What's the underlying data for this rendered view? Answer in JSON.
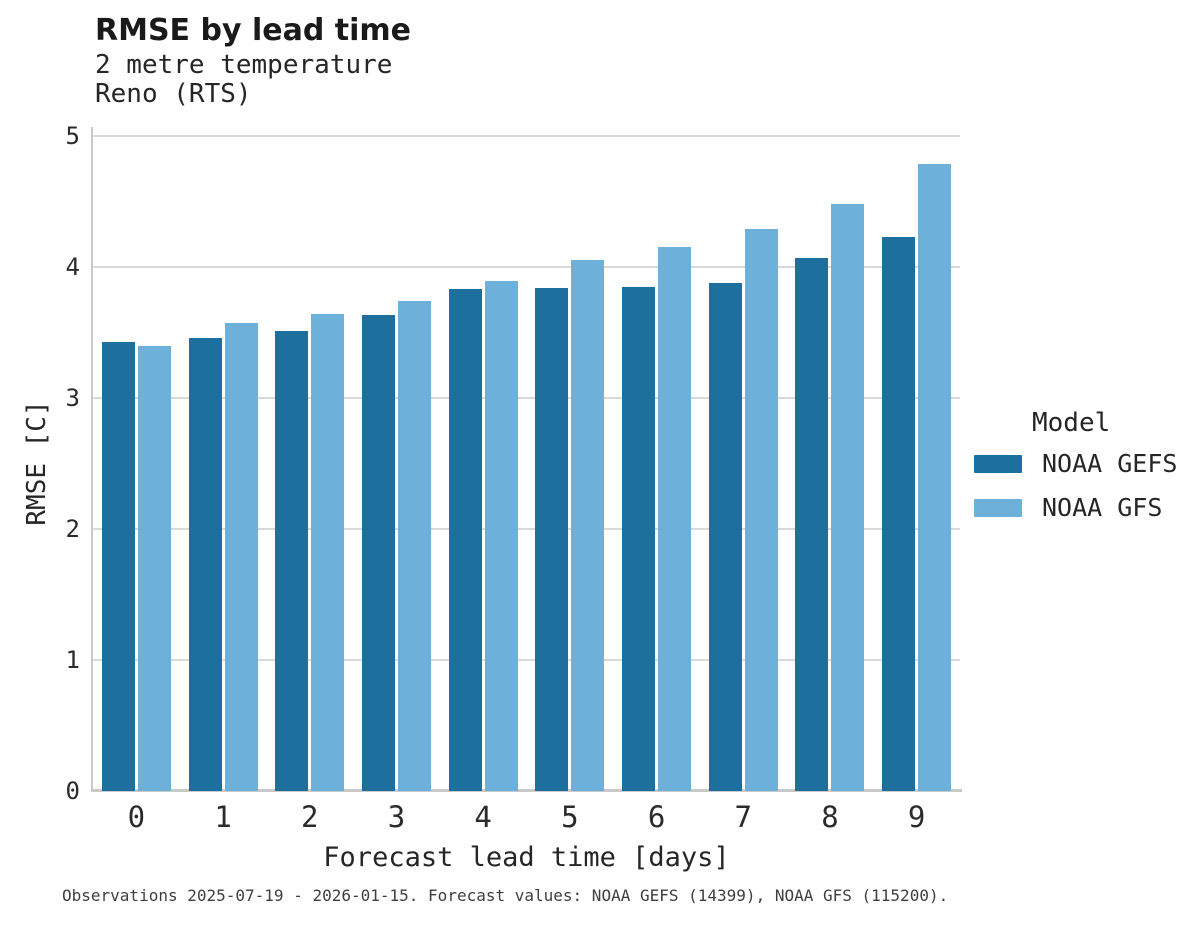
{
  "header": {
    "title": "RMSE by lead time",
    "subtitle1": "2 metre temperature",
    "subtitle2": "Reno (RTS)"
  },
  "legend": {
    "title": "Model",
    "items": [
      {
        "label": "NOAA GEFS",
        "color": "#1d6f9e"
      },
      {
        "label": "NOAA GFS",
        "color": "#6db1da"
      }
    ]
  },
  "footer": {
    "note": "Observations 2025-07-19 - 2026-01-15. Forecast values: NOAA GEFS (14399), NOAA GFS (115200)."
  },
  "chart_data": {
    "type": "bar",
    "title": "RMSE by lead time",
    "subtitle": [
      "2 metre temperature",
      "Reno (RTS)"
    ],
    "categories": [
      "0",
      "1",
      "2",
      "3",
      "4",
      "5",
      "6",
      "7",
      "8",
      "9"
    ],
    "series": [
      {
        "name": "NOAA GEFS",
        "color": "#1d6f9e",
        "values": [
          3.43,
          3.46,
          3.51,
          3.63,
          3.83,
          3.84,
          3.85,
          3.88,
          4.07,
          4.23
        ]
      },
      {
        "name": "NOAA GFS",
        "color": "#6db1da",
        "values": [
          3.4,
          3.57,
          3.64,
          3.74,
          3.89,
          4.05,
          4.15,
          4.29,
          4.48,
          4.79
        ]
      }
    ],
    "xlabel": "Forecast lead time [days]",
    "ylabel": "RMSE [C]",
    "ylim": [
      0,
      5
    ],
    "yticks": [
      0,
      1,
      2,
      3,
      4,
      5
    ],
    "grid": true,
    "legend_position": "right",
    "legend_title": "Model"
  }
}
